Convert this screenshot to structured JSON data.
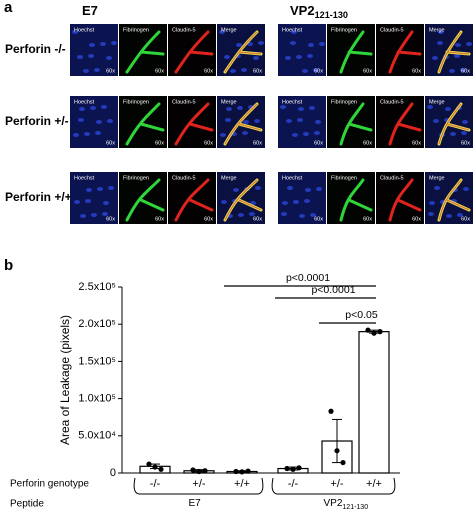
{
  "panel_a": {
    "letter": "a",
    "columns": [
      {
        "text": "E7"
      },
      {
        "text": "VP2",
        "subscript": "121-130"
      }
    ],
    "rows": [
      "Perforin -/-",
      "Perforin +/-",
      "Perforin +/+"
    ],
    "channels": [
      "Hoechst",
      "Fibrinogen",
      "Claudin-5",
      "Merge"
    ],
    "magnification": "60x"
  },
  "chart_data": {
    "type": "bar",
    "letter": "b",
    "y_label": "Area of Leakage (pixels)",
    "categories": [
      "-/-",
      "+/-",
      "+/+",
      "-/-",
      "+/-",
      "+/+"
    ],
    "values": [
      9000,
      3000,
      2000,
      6000,
      43000,
      190000
    ],
    "errors": [
      3000,
      1500,
      1000,
      2000,
      29000,
      2000
    ],
    "points": [
      [
        12000,
        8000,
        5000
      ],
      [
        4000,
        2000,
        3000
      ],
      [
        2000,
        1500,
        2500
      ],
      [
        6000,
        5000,
        7000
      ],
      [
        83000,
        30000,
        14000
      ],
      [
        192000,
        188000,
        190000
      ]
    ],
    "color": "#ffffff",
    "ylim": [
      0,
      250000
    ],
    "yticks": [
      0,
      {
        "value": 50000,
        "label": "5.0x10⁴"
      },
      {
        "value": 100000,
        "label": "1.0x10⁵"
      },
      {
        "value": 150000,
        "label": "1.5x10⁵"
      },
      {
        "value": 200000,
        "label": "2.0x10⁵"
      },
      {
        "value": 250000,
        "label": "2.5x10⁵"
      }
    ],
    "row_labels": [
      "Perforin genotype",
      "Peptide"
    ],
    "groups": [
      {
        "text": "E7",
        "size": 3
      },
      {
        "text": "VP2",
        "subscript": "121-130",
        "size": 3
      }
    ],
    "comparisons": [
      {
        "text": "p<0.0001",
        "from": 2,
        "to": 5
      },
      {
        "text": "p<0.0001",
        "from": 3,
        "to": 5
      },
      {
        "text": "p<0.05",
        "from": 4,
        "to": 5
      }
    ]
  }
}
